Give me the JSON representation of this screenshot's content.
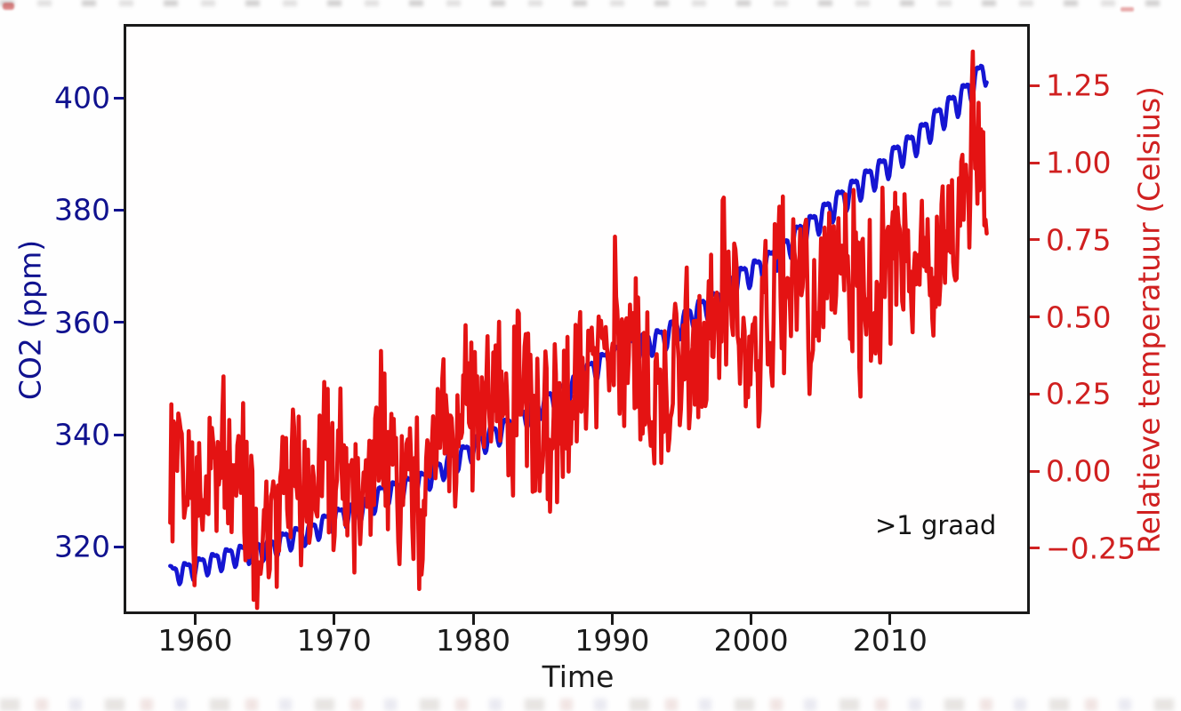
{
  "chart_data": {
    "type": "line",
    "title": "",
    "xlabel": "Time",
    "annotation": ">1 graad",
    "legend": "none",
    "grid": false,
    "years": [
      1958,
      1959,
      1960,
      1961,
      1962,
      1963,
      1964,
      1965,
      1966,
      1967,
      1968,
      1969,
      1970,
      1971,
      1972,
      1973,
      1974,
      1975,
      1976,
      1977,
      1978,
      1979,
      1980,
      1981,
      1982,
      1983,
      1984,
      1985,
      1986,
      1987,
      1988,
      1989,
      1990,
      1991,
      1992,
      1993,
      1994,
      1995,
      1996,
      1997,
      1998,
      1999,
      2000,
      2001,
      2002,
      2003,
      2004,
      2005,
      2006,
      2007,
      2008,
      2009,
      2010,
      2011,
      2012,
      2013,
      2014,
      2015,
      2016,
      2017
    ],
    "series": [
      {
        "name": "CO2 (ppm)",
        "axis": "left",
        "color": "#1515d2",
        "start": 1958.2,
        "end": 2017.0,
        "resolution": "monthly",
        "annual_values": [
          315.3,
          316.0,
          316.9,
          317.6,
          318.5,
          319.0,
          319.6,
          320.0,
          321.4,
          322.2,
          323.0,
          324.6,
          325.7,
          326.3,
          327.5,
          329.7,
          330.2,
          331.1,
          332.0,
          333.8,
          335.4,
          336.8,
          338.8,
          340.1,
          341.5,
          343.1,
          344.9,
          346.3,
          347.6,
          349.3,
          351.7,
          353.2,
          354.4,
          355.7,
          356.5,
          357.2,
          359.0,
          361.0,
          362.7,
          363.9,
          366.8,
          368.5,
          369.7,
          371.3,
          373.4,
          376.0,
          377.7,
          380.0,
          382.1,
          384.0,
          385.8,
          387.6,
          390.1,
          391.8,
          394.1,
          396.7,
          398.9,
          401.0,
          404.4,
          406.8
        ],
        "seasonal_amplitude_ppm": 1.55,
        "seasonal_amplitude_growth_per_year": 0.011
      },
      {
        "name": "Relatieve temperatuur (Celsius)",
        "axis": "right",
        "color": "#e41313",
        "start": 1958.2,
        "end": 2017.0,
        "resolution": "monthly",
        "annual_values": [
          0.07,
          0.03,
          -0.03,
          0.06,
          0.03,
          0.06,
          -0.2,
          -0.11,
          -0.06,
          -0.02,
          -0.08,
          0.05,
          0.03,
          -0.08,
          0.01,
          0.16,
          -0.07,
          -0.01,
          -0.1,
          0.18,
          0.07,
          0.17,
          0.27,
          0.33,
          0.14,
          0.31,
          0.16,
          0.12,
          0.19,
          0.33,
          0.4,
          0.28,
          0.45,
          0.42,
          0.23,
          0.24,
          0.31,
          0.45,
          0.34,
          0.47,
          0.62,
          0.4,
          0.4,
          0.54,
          0.63,
          0.62,
          0.54,
          0.69,
          0.64,
          0.67,
          0.55,
          0.66,
          0.73,
          0.61,
          0.65,
          0.68,
          0.75,
          0.9,
          1.02,
          0.93
        ],
        "monthly_noise_amplitude": 0.33,
        "noise_seed": 12,
        "monthly_extremes": [
          {
            "x": 1959.95,
            "y": -0.37,
            "w": 0.05
          },
          {
            "x": 1963.6,
            "y": -0.32,
            "w": 0.07
          },
          {
            "x": 1964.8,
            "y": -0.3,
            "w": 0.1
          },
          {
            "x": 1968.3,
            "y": -0.22,
            "w": 0.07
          },
          {
            "x": 1971.9,
            "y": -0.27,
            "w": 0.08
          },
          {
            "x": 1974.6,
            "y": -0.25,
            "w": 0.08
          },
          {
            "x": 1976.3,
            "y": -0.34,
            "w": 0.08
          },
          {
            "x": 1977.8,
            "y": 0.3,
            "w": 0.05
          },
          {
            "x": 1981.0,
            "y": 0.55,
            "w": 0.05
          },
          {
            "x": 1983.2,
            "y": 0.52,
            "w": 0.05
          },
          {
            "x": 1984.8,
            "y": -0.08,
            "w": 0.08
          },
          {
            "x": 1987.6,
            "y": 0.46,
            "w": 0.05
          },
          {
            "x": 1990.2,
            "y": 0.76,
            "w": 0.05
          },
          {
            "x": 1992.8,
            "y": 0.08,
            "w": 0.15
          },
          {
            "x": 1995.3,
            "y": 0.58,
            "w": 0.05
          },
          {
            "x": 1998.0,
            "y": 0.92,
            "w": 0.09
          },
          {
            "x": 1999.8,
            "y": 0.24,
            "w": 0.08
          },
          {
            "x": 2002.0,
            "y": 0.9,
            "w": 0.07
          },
          {
            "x": 2003.0,
            "y": 0.78,
            "w": 0.05
          },
          {
            "x": 2004.2,
            "y": 0.25,
            "w": 0.06
          },
          {
            "x": 2005.3,
            "y": 0.8,
            "w": 0.05
          },
          {
            "x": 2006.3,
            "y": 0.85,
            "w": 0.05
          },
          {
            "x": 2007.85,
            "y": 0.22,
            "w": 0.07
          },
          {
            "x": 2010.2,
            "y": 0.84,
            "w": 0.06
          },
          {
            "x": 2011.6,
            "y": 0.44,
            "w": 0.09
          },
          {
            "x": 2013.1,
            "y": 0.42,
            "w": 0.06
          },
          {
            "x": 2015.95,
            "y": 1.36,
            "w": 0.1
          },
          {
            "x": 2016.9,
            "y": 0.83,
            "w": 0.05
          }
        ]
      }
    ],
    "axes": {
      "x": {
        "lim": [
          1955.04,
          2019.86
        ],
        "ticks": [
          {
            "v": 1960,
            "label": "1960"
          },
          {
            "v": 1970,
            "label": "1970"
          },
          {
            "v": 1980,
            "label": "1980"
          },
          {
            "v": 1990,
            "label": "1990"
          },
          {
            "v": 2000,
            "label": "2000"
          },
          {
            "v": 2010,
            "label": "2010"
          }
        ]
      },
      "left": {
        "lim": [
          308.5,
          412.7
        ],
        "label_color": "#10128f",
        "ticks": [
          {
            "v": 400,
            "label": "400"
          },
          {
            "v": 380,
            "label": "380"
          },
          {
            "v": 360,
            "label": "360"
          },
          {
            "v": 340,
            "label": "340"
          },
          {
            "v": 320,
            "label": "320"
          }
        ]
      },
      "right": {
        "lim": [
          -0.455,
          1.441
        ],
        "label_color": "#d02020",
        "ticks": [
          {
            "v": 1.25,
            "label": "1.25"
          },
          {
            "v": 1.0,
            "label": "1.00"
          },
          {
            "v": 0.75,
            "label": "0.75"
          },
          {
            "v": 0.5,
            "label": "0.50"
          },
          {
            "v": 0.25,
            "label": "0.25"
          },
          {
            "v": 0.0,
            "label": "0.00"
          },
          {
            "v": -0.25,
            "label": "−0.25"
          }
        ]
      }
    },
    "colors": {
      "co2_line": "#1515d2",
      "temperature_line": "#e41313",
      "co2_axis_text": "#10128f",
      "temperature_axis_text": "#d02020",
      "spine": "#1a1a1a"
    }
  }
}
